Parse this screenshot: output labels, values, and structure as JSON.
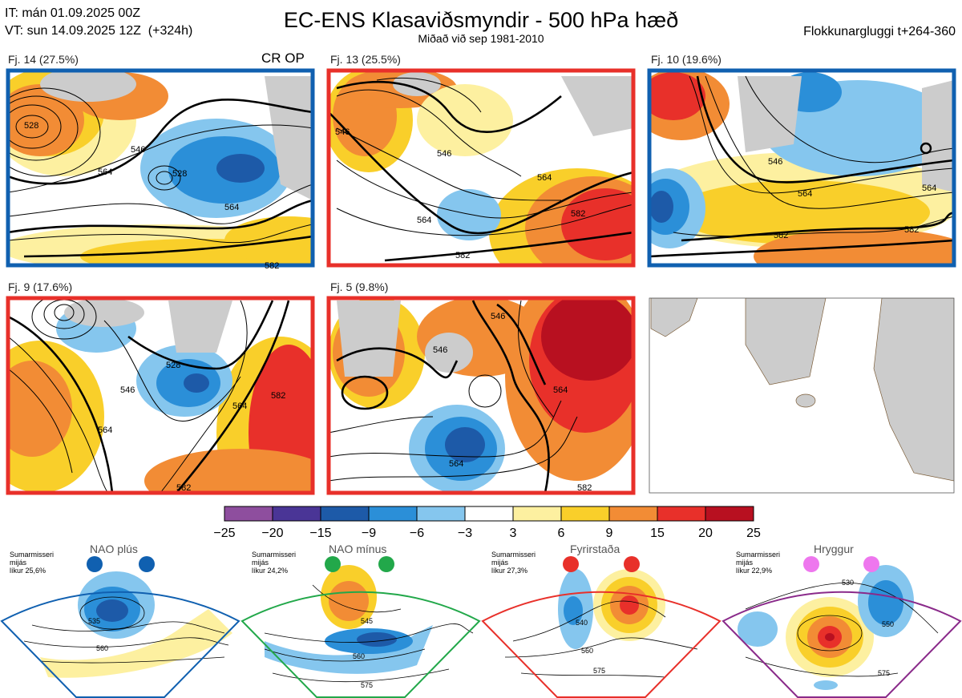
{
  "header": {
    "it_line": "IT: mán 01.09.2025 00Z",
    "vt_line": "VT: sun 14.09.2025 12Z  (+324h)",
    "title": "EC-ENS Klasaviðsmyndir - 500 hPa hæð",
    "subtitle": "Miðað við sep 1981-2010",
    "window": "Flokkunargluggi t+264-360"
  },
  "clusters": [
    {
      "label": "Fj. 14 (27.5%)",
      "tag": "CR OP",
      "border": "#1060b0",
      "contours": [
        "546",
        "528",
        "564",
        "564",
        "582",
        "528"
      ]
    },
    {
      "label": "Fj. 13 (25.5%)",
      "tag": "",
      "border": "#e8302a",
      "contours": [
        "546",
        "564",
        "546",
        "564",
        "582",
        "582"
      ]
    },
    {
      "label": "Fj. 10 (19.6%)",
      "tag": "",
      "border": "#1060b0",
      "contours": [
        "546",
        "564",
        "564",
        "582",
        "582"
      ]
    },
    {
      "label": "Fj. 9 (17.6%)",
      "tag": "",
      "border": "#e8302a",
      "contours": [
        "564",
        "528",
        "546",
        "582",
        "564",
        "582"
      ]
    },
    {
      "label": "Fj. 5 (9.8%)",
      "tag": "",
      "border": "#e8302a",
      "contours": [
        "546",
        "546",
        "564",
        "564",
        "582"
      ]
    }
  ],
  "colorbar": {
    "ticks": [
      "−25",
      "−20",
      "−15",
      "−9",
      "−6",
      "−3",
      "3",
      "6",
      "9",
      "15",
      "20",
      "25"
    ],
    "colors": [
      "#8e4e9e",
      "#4a3596",
      "#1d5aa8",
      "#2b8fd8",
      "#85c6ee",
      "#ffffff",
      "#fdf0a0",
      "#f9cf2a",
      "#f28c35",
      "#e8302a",
      "#b81020"
    ]
  },
  "regimes": [
    {
      "name": "NAO plús",
      "season": "Sumarmisseri",
      "mean": "mijás",
      "prob": "líkur 25,6%",
      "color": "#1060b0",
      "contours": [
        "535",
        "560"
      ]
    },
    {
      "name": "NAO mínus",
      "season": "Sumarmisseri",
      "mean": "mijás",
      "prob": "líkur 24,2%",
      "color": "#22a84a",
      "contours": [
        "545",
        "560",
        "575"
      ]
    },
    {
      "name": "Fyrirstaða",
      "season": "Sumarmisseri",
      "mean": "mijás",
      "prob": "líkur 27,3%",
      "color": "#e8302a",
      "contours": [
        "540",
        "560",
        "575"
      ]
    },
    {
      "name": "Hryggur",
      "season": "Sumarmisseri",
      "mean": "mijás",
      "prob": "líkur 22,9%",
      "color": "#8a2a8a",
      "contours": [
        "530",
        "550",
        "575"
      ]
    }
  ],
  "chart_data": {
    "type": "heatmap",
    "title": "EC-ENS Klasaviðsmyndir - 500 hPa hæð",
    "subtitle": "Miðað við sep 1981-2010",
    "series": [
      {
        "name": "Fj. 14",
        "values": [
          27.5
        ]
      },
      {
        "name": "Fj. 13",
        "values": [
          25.5
        ]
      },
      {
        "name": "Fj. 10",
        "values": [
          19.6
        ]
      },
      {
        "name": "Fj. 9",
        "values": [
          17.6
        ]
      },
      {
        "name": "Fj. 5",
        "values": [
          9.8
        ]
      }
    ],
    "colorbar_levels": [
      -25,
      -20,
      -15,
      -9,
      -6,
      -3,
      3,
      6,
      9,
      15,
      20,
      25
    ],
    "regime_probabilities": {
      "NAO plús": 25.6,
      "NAO mínus": 24.2,
      "Fyrirstaða": 27.3,
      "Hryggur": 22.9
    }
  }
}
